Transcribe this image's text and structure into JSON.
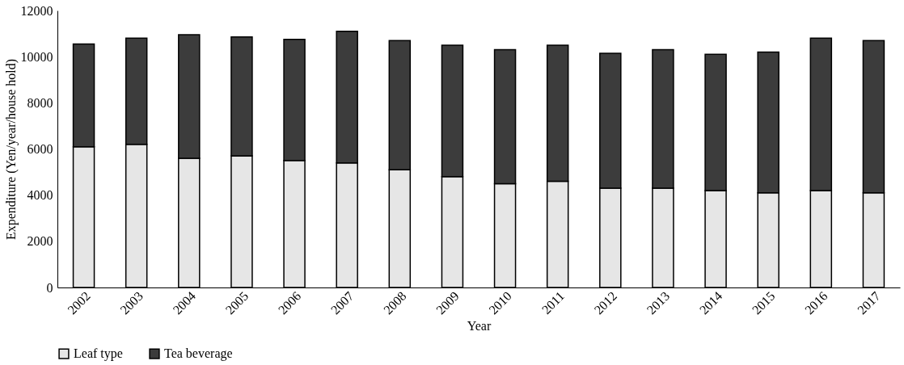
{
  "chart_data": {
    "type": "bar",
    "stacked": true,
    "xlabel": "Year",
    "ylabel": "Expenditure (Yen/year/house hold)",
    "categories": [
      "2002",
      "2003",
      "2004",
      "2005",
      "2006",
      "2007",
      "2008",
      "2009",
      "2010",
      "2011",
      "2012",
      "2013",
      "2014",
      "2015",
      "2016",
      "2017"
    ],
    "series": [
      {
        "name": "Leaf type",
        "color": "#e6e6e6",
        "values": [
          6100,
          6200,
          5600,
          5700,
          5500,
          5400,
          5100,
          4800,
          4500,
          4600,
          4300,
          4300,
          4200,
          4100,
          4200,
          4100
        ]
      },
      {
        "name": "Tea beverage",
        "color": "#3c3c3c",
        "values": [
          4450,
          4600,
          5350,
          5150,
          5250,
          5700,
          5600,
          5700,
          5800,
          5900,
          5850,
          6000,
          5900,
          6100,
          6600,
          6600
        ]
      }
    ],
    "ylim": [
      0,
      12000
    ],
    "yticks": [
      0,
      2000,
      4000,
      6000,
      8000,
      10000,
      12000
    ],
    "grid": false,
    "legend": "bottom"
  }
}
